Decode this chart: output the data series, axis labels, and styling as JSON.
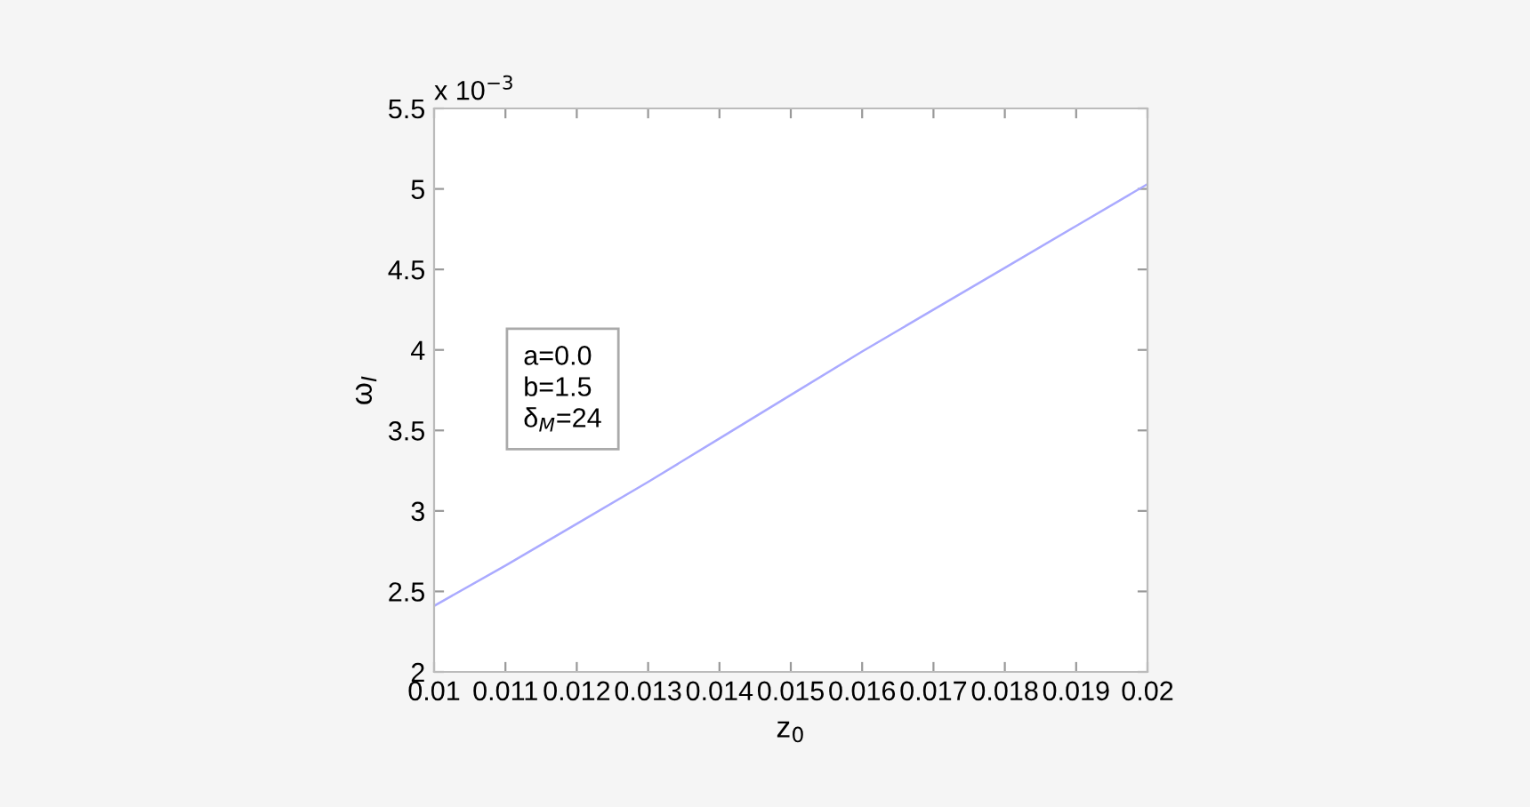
{
  "chart_data": {
    "type": "line",
    "xlabel": "z$_{0}$",
    "ylabel": "ω$_{I}$",
    "annotations": [
      "x 10$^{−3}$",
      "a=0.0\nb=1.5\nδ$_{M}$=24"
    ],
    "x": [
      0.01,
      0.011,
      0.012,
      0.013,
      0.014,
      0.015,
      0.016,
      0.017,
      0.018,
      0.019,
      0.02
    ],
    "series": [
      {
        "color": "#aaaaff",
        "values": [
          2.41,
          2.66,
          2.92,
          3.18,
          3.45,
          3.72,
          3.99,
          4.25,
          4.51,
          4.77,
          5.03
        ]
      }
    ],
    "xlim": [
      0.01,
      0.02
    ],
    "xticks": [
      0.01,
      0.011,
      0.012,
      0.013,
      0.014,
      0.015,
      0.016,
      0.017,
      0.018,
      0.019,
      0.02
    ],
    "ylim": [
      2,
      5.5
    ],
    "yticks": [
      2,
      2.5,
      3,
      3.5,
      4,
      4.5,
      5,
      5.5
    ],
    "grid": false,
    "legend": false,
    "marker": "none",
    "line_style": "solid"
  }
}
